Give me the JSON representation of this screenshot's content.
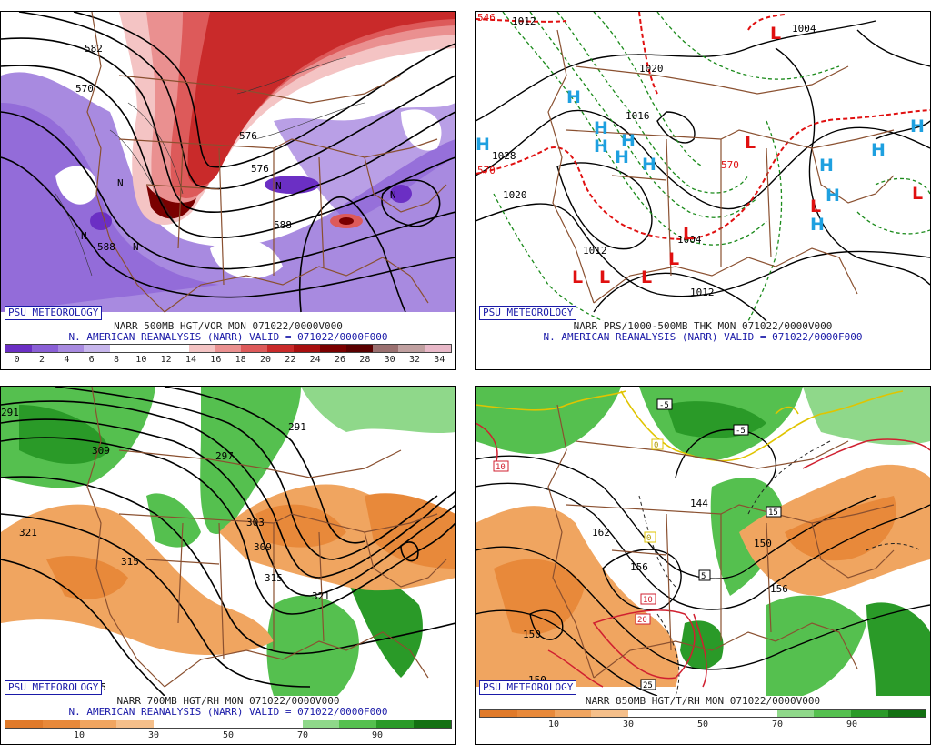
{
  "panels": [
    {
      "badge": "PSU METEOROLOGY",
      "title": "NARR 500MB HGT/VOR MON 071022/0000V000",
      "subtitle": "N. AMERICAN REANALYSIS (NARR) VALID = 071022/0000F000",
      "scale_colors": [
        "#6b2fc4",
        "#8a5fd6",
        "#a88ae0",
        "#c7b6ec",
        "#ffffff",
        "#ffffff",
        "#ffffff",
        "#f4c4c4",
        "#ea9090",
        "#dd5a5a",
        "#c92a2a",
        "#a80f0f",
        "#7a0000",
        "#5a0000",
        "#9a7070",
        "#c0a0a0",
        "#e8b8c8"
      ],
      "scale_ticks": [
        "0",
        "2",
        "4",
        "6",
        "8",
        "10",
        "12",
        "14",
        "16",
        "18",
        "20",
        "22",
        "24",
        "26",
        "28",
        "30",
        "32",
        "34"
      ],
      "labels": [
        "570",
        "588",
        "588",
        "576",
        "576",
        "582",
        "N",
        "N",
        "N",
        "N",
        "N"
      ]
    },
    {
      "badge": "PSU METEOROLOGY",
      "title": "NARR PRS/1000-500MB THK MON 071022/0000V000",
      "subtitle": "N. AMERICAN REANALYSIS (NARR) VALID = 071022/0000F000",
      "labels": [
        "1012",
        "1004",
        "1020",
        "1028",
        "1020",
        "1016",
        "1012",
        "1004",
        "1012",
        "570",
        "546",
        "570"
      ],
      "highs": [
        "H",
        "H",
        "H",
        "H",
        "H",
        "H",
        "H",
        "H",
        "H",
        "H",
        "H",
        "H"
      ],
      "lows": [
        "L",
        "L",
        "L",
        "L",
        "L",
        "L",
        "L",
        "L",
        "L"
      ]
    },
    {
      "badge": "PSU METEOROLOGY",
      "title": "NARR 700MB HGT/RH MON 071022/0000V000",
      "subtitle": "N. AMERICAN REANALYSIS (NARR) VALID = 071022/0000F000",
      "scale_colors": [
        "#e07a2a",
        "#e8893a",
        "#f0a560",
        "#f5bf8a",
        "#ffffff",
        "#ffffff",
        "#ffffff",
        "#ffffff",
        "#8fd88a",
        "#55c04f",
        "#2a9a28",
        "#137012"
      ],
      "scale_ticks": [
        "10",
        "30",
        "50",
        "70",
        "90"
      ],
      "labels": [
        "291",
        "309",
        "297",
        "303",
        "309",
        "315",
        "321",
        "321",
        "315",
        "315",
        "291"
      ]
    },
    {
      "badge": "PSU METEOROLOGY",
      "title": "NARR 850MB HGT/T/RH MON 071022/0000V000",
      "scale_colors": [
        "#e07a2a",
        "#e8893a",
        "#f0a560",
        "#f5bf8a",
        "#ffffff",
        "#ffffff",
        "#ffffff",
        "#ffffff",
        "#8fd88a",
        "#55c04f",
        "#2a9a28",
        "#137012"
      ],
      "scale_ticks": [
        "10",
        "30",
        "50",
        "70",
        "90"
      ],
      "labels": [
        "150",
        "150",
        "156",
        "156",
        "150",
        "162",
        "144",
        "-5",
        "-5",
        "10",
        "20",
        "25",
        "5",
        "15",
        "10",
        "0",
        "0"
      ]
    }
  ]
}
